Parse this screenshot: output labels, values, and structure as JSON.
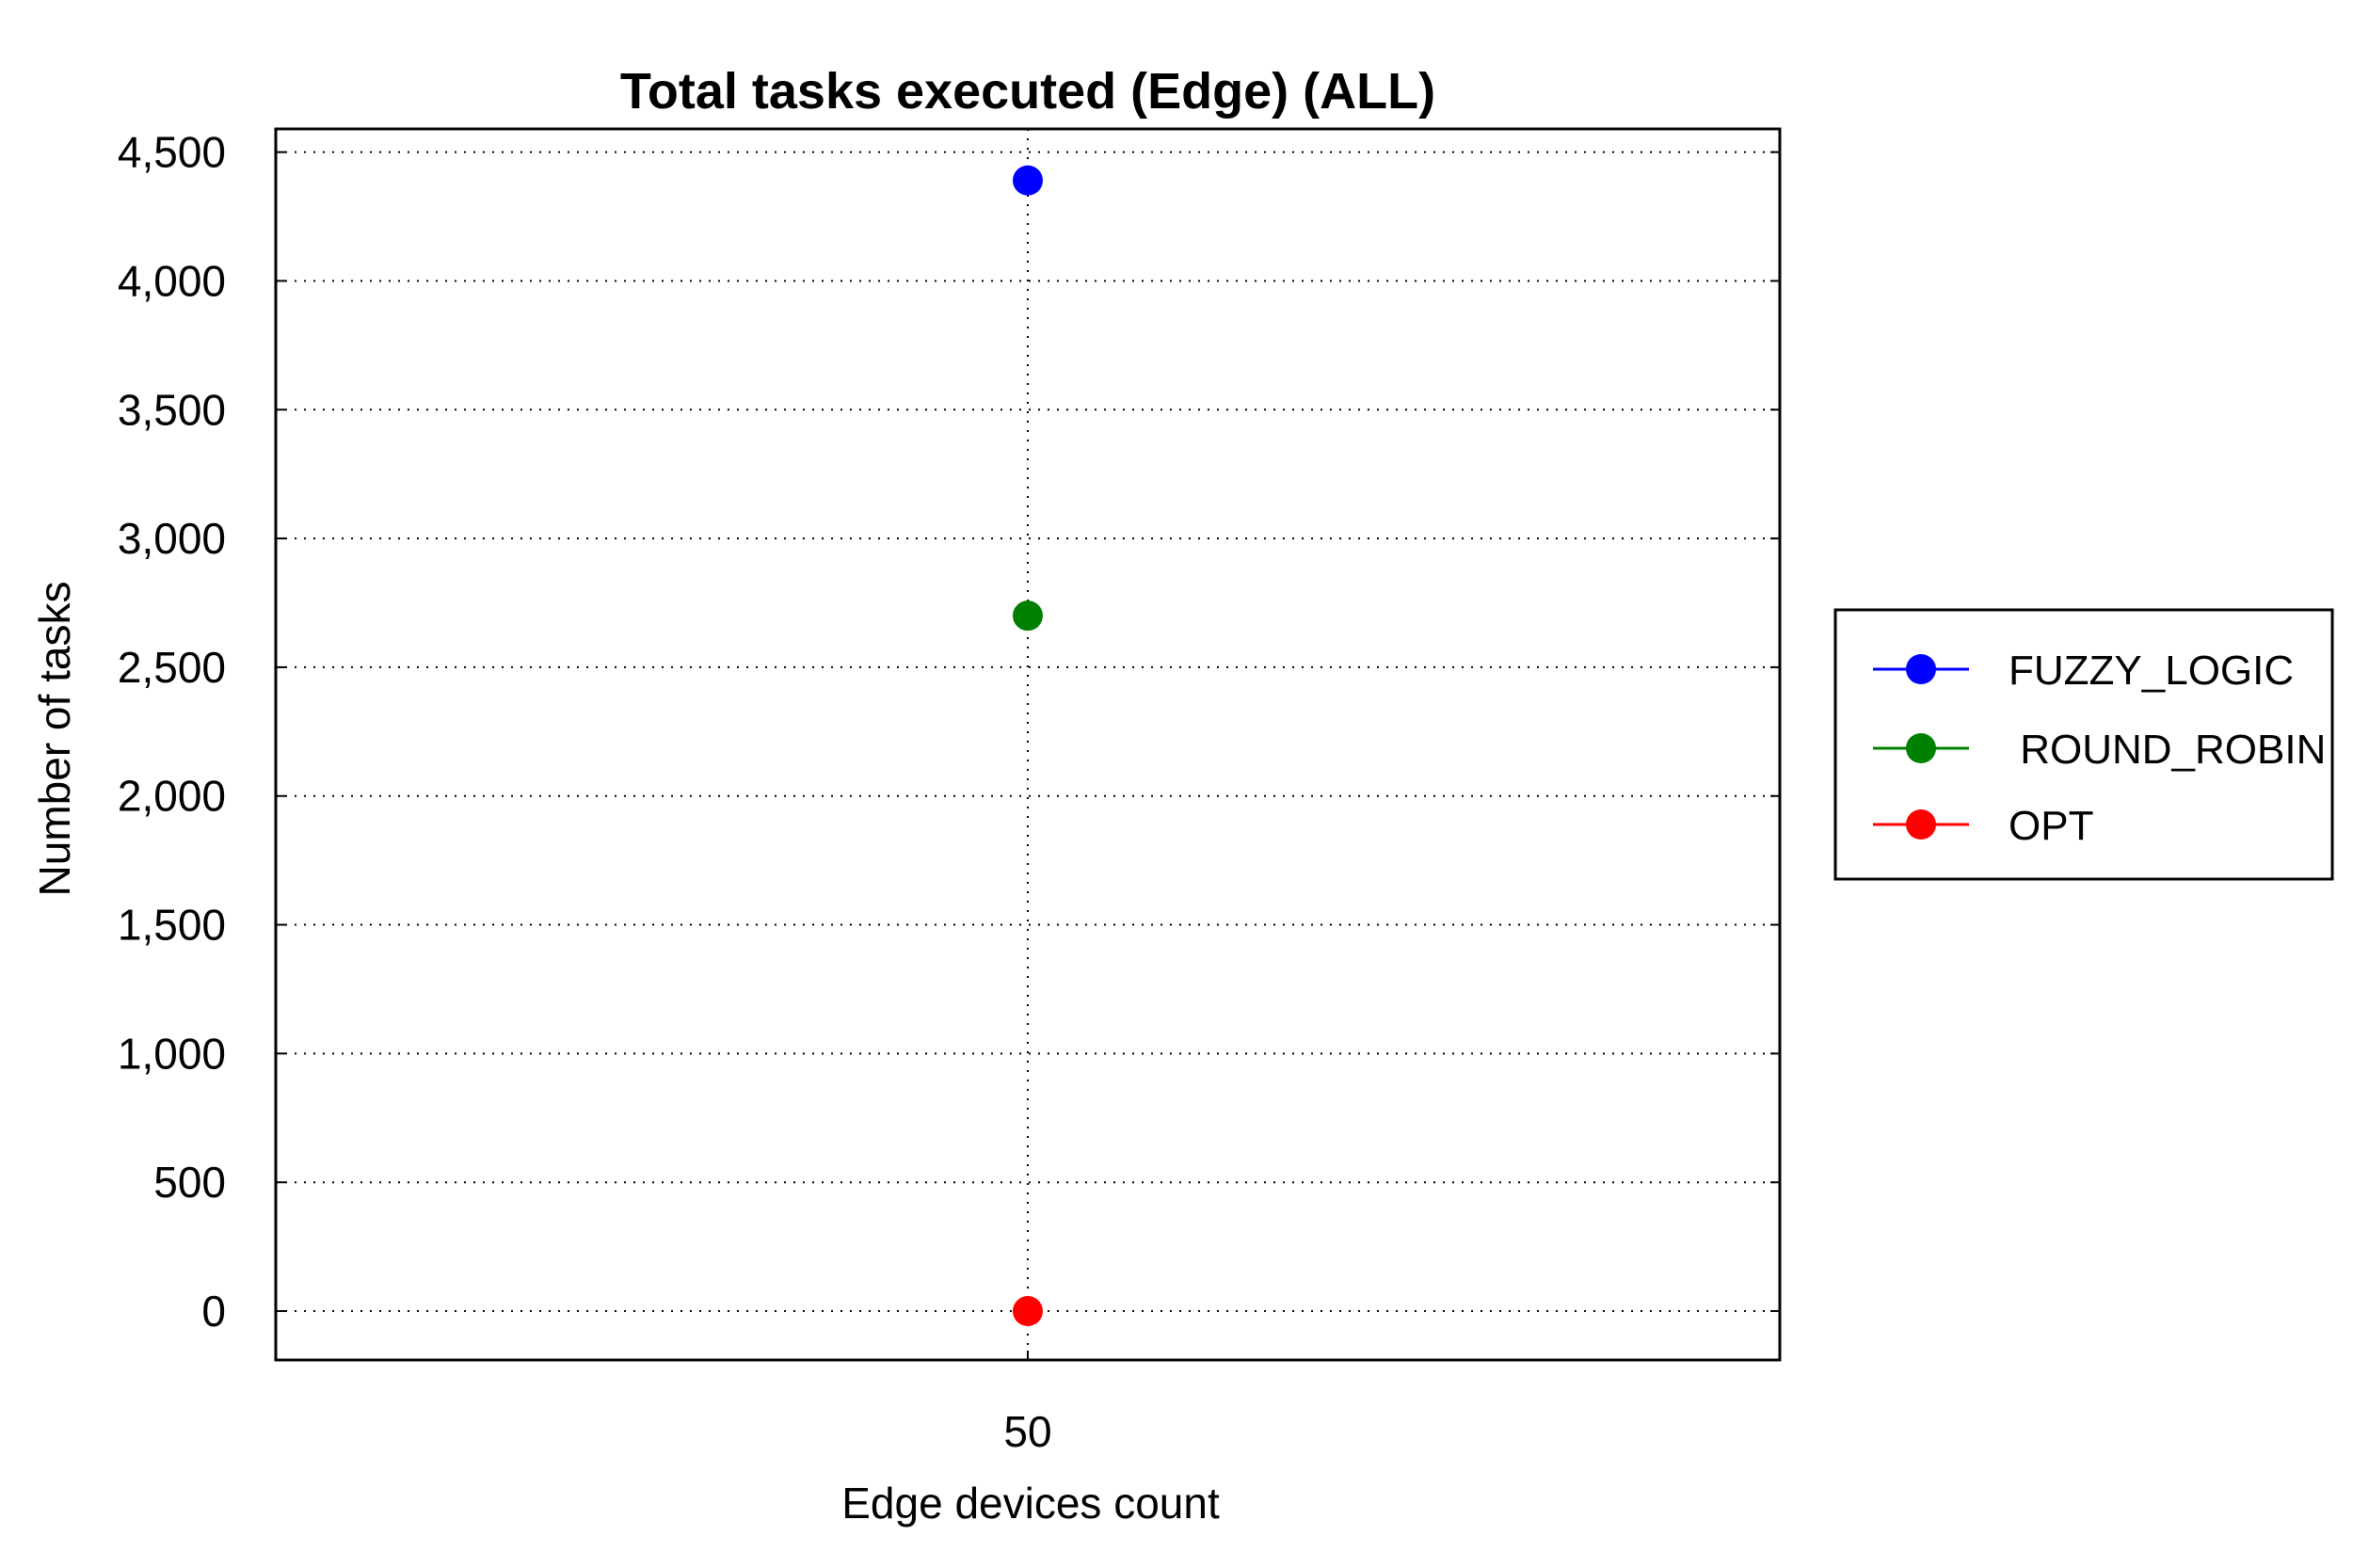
{
  "chart_data": {
    "type": "line",
    "title": "Total tasks executed (Edge) (ALL)",
    "xlabel": "Edge devices count",
    "ylabel": "Number of tasks",
    "x_categories": [
      "50"
    ],
    "ylim": [
      -190,
      4590
    ],
    "yticks": [
      0,
      500,
      1000,
      1500,
      2000,
      2500,
      3000,
      3500,
      4000,
      4500
    ],
    "ytick_labels": [
      "0",
      "500",
      "1,000",
      "1,500",
      "2,000",
      "2,500",
      "3,000",
      "3,500",
      "4,000",
      "4,500"
    ],
    "grid": true,
    "legend_position": "right",
    "series": [
      {
        "name": "FUZZY_LOGIC",
        "color": "#0000ff",
        "values": [
          4390
        ]
      },
      {
        "name": "ROUND_ROBIN",
        "legend_text": " ROUND_ROBIN",
        "color": "#008000",
        "values": [
          2700
        ]
      },
      {
        "name": "OPT",
        "color": "#ff0000",
        "values": [
          0
        ]
      }
    ]
  }
}
